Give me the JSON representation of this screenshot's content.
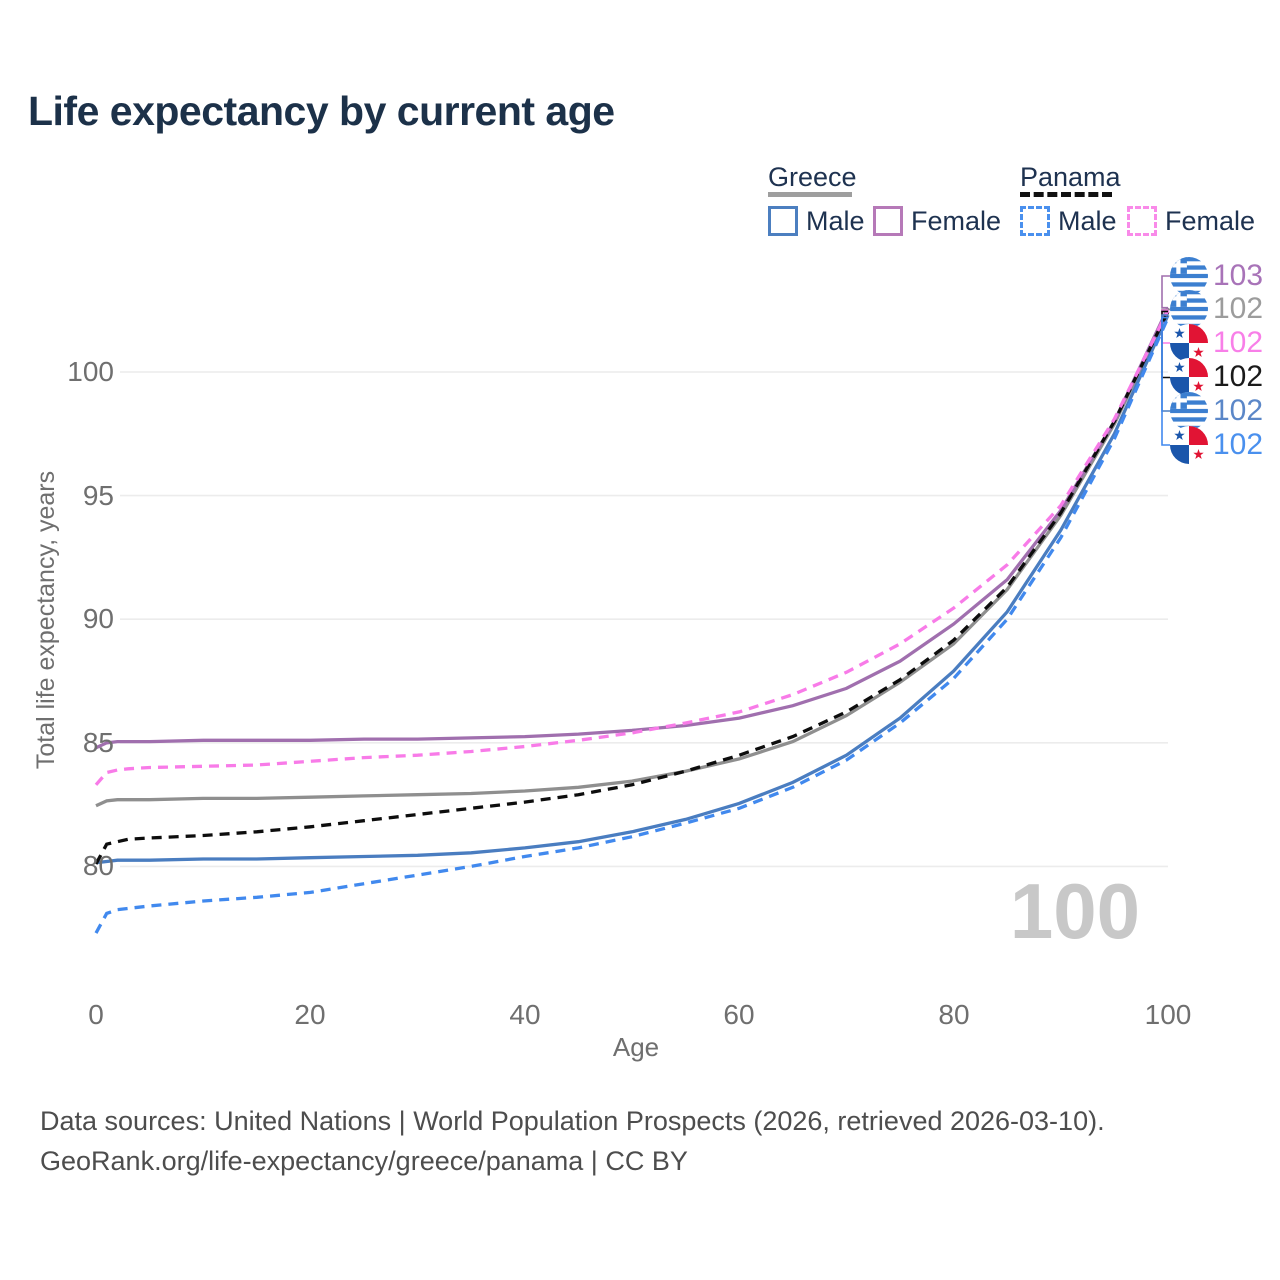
{
  "title": "Life expectancy by current age",
  "watermark": "100",
  "colors": {
    "title_text": "#1c3149",
    "axis_text": "#6f6f6f",
    "gridline": "#ececec",
    "watermark": "#c8c8c8",
    "footer_text": "#4d4d4d"
  },
  "legend": {
    "groups": [
      {
        "label": "Greece",
        "underline_style": "solid",
        "underline_color": "#9e9e9e",
        "items": [
          {
            "label": "Male",
            "swatch_style": "solid",
            "swatch_color": "#4c7fc0"
          },
          {
            "label": "Female",
            "swatch_style": "solid",
            "swatch_color": "#b679b8"
          }
        ]
      },
      {
        "label": "Panama",
        "underline_style": "dashed",
        "underline_color": "#111111",
        "items": [
          {
            "label": "Male",
            "swatch_style": "dashed",
            "swatch_color": "#4a90ee"
          },
          {
            "label": "Female",
            "swatch_style": "dashed",
            "swatch_color": "#f98ae9"
          }
        ]
      }
    ]
  },
  "chart_data": {
    "type": "line",
    "title": "Life expectancy by current age",
    "xlabel": "Age",
    "ylabel": "Total life expectancy, years",
    "x_ticks": [
      "0",
      "20",
      "40",
      "60",
      "80",
      "100"
    ],
    "y_ticks": [
      "100",
      "95",
      "90",
      "85",
      "80"
    ],
    "x_tick_values": [
      0,
      20,
      40,
      60,
      80,
      100
    ],
    "y_gridline_values": [
      100,
      95,
      90,
      85,
      80
    ],
    "x_range": [
      0,
      100
    ],
    "y_range": [
      75.4,
      103.1
    ],
    "grid": "horizontal-only",
    "ages": [
      0,
      1,
      2,
      3,
      5,
      10,
      15,
      20,
      25,
      30,
      35,
      40,
      45,
      50,
      55,
      60,
      65,
      70,
      75,
      80,
      85,
      90,
      95,
      100
    ],
    "series": [
      {
        "name": "Greece Female",
        "country": "Greece",
        "sex": "Female",
        "flag": "greece",
        "style": "solid",
        "color": "#a06fae",
        "label_color": "#a873b8",
        "end_label": "103",
        "values": [
          84.8,
          85.0,
          85.05,
          85.05,
          85.05,
          85.1,
          85.1,
          85.1,
          85.15,
          85.15,
          85.2,
          85.25,
          85.35,
          85.5,
          85.7,
          86.0,
          86.5,
          87.2,
          88.3,
          89.8,
          91.6,
          94.4,
          98.0,
          102.6
        ]
      },
      {
        "name": "Greece Both sexes",
        "country": "Greece",
        "sex": "Both",
        "flag": "greece",
        "style": "solid",
        "color": "#8f8f8f",
        "label_color": "#9c9c9c",
        "end_label": "102",
        "values": [
          82.45,
          82.65,
          82.7,
          82.7,
          82.7,
          82.75,
          82.75,
          82.8,
          82.85,
          82.9,
          82.95,
          83.05,
          83.2,
          83.45,
          83.85,
          84.35,
          85.05,
          86.1,
          87.45,
          89.0,
          91.2,
          94.2,
          97.9,
          102.45
        ]
      },
      {
        "name": "Panama Female",
        "country": "Panama",
        "sex": "Female",
        "flag": "panama",
        "style": "dashed",
        "color": "#f87be8",
        "label_color": "#f87fe8",
        "end_label": "102",
        "values": [
          83.3,
          83.8,
          83.9,
          83.95,
          84.0,
          84.05,
          84.1,
          84.25,
          84.4,
          84.5,
          84.65,
          84.85,
          85.1,
          85.4,
          85.8,
          86.25,
          86.95,
          87.85,
          89.0,
          90.45,
          92.2,
          94.6,
          98.1,
          102.5
        ]
      },
      {
        "name": "Panama Both sexes",
        "country": "Panama",
        "sex": "Both",
        "flag": "panama",
        "style": "dashed",
        "color": "#0d0d0d",
        "label_color": "#1a1a1a",
        "end_label": "102",
        "values": [
          80.1,
          80.9,
          81.0,
          81.1,
          81.15,
          81.25,
          81.4,
          81.6,
          81.85,
          82.1,
          82.35,
          82.6,
          82.9,
          83.3,
          83.85,
          84.5,
          85.25,
          86.25,
          87.55,
          89.15,
          91.3,
          94.3,
          98.0,
          102.45
        ]
      },
      {
        "name": "Greece Male",
        "country": "Greece",
        "sex": "Male",
        "flag": "greece",
        "style": "solid",
        "color": "#4a7dc0",
        "label_color": "#5b87c8",
        "end_label": "102",
        "values": [
          80.15,
          80.2,
          80.25,
          80.25,
          80.25,
          80.3,
          80.3,
          80.35,
          80.4,
          80.45,
          80.55,
          80.75,
          81.0,
          81.4,
          81.9,
          82.55,
          83.4,
          84.5,
          86.0,
          87.9,
          90.3,
          93.6,
          97.5,
          102.3
        ]
      },
      {
        "name": "Panama Male",
        "country": "Panama",
        "sex": "Male",
        "flag": "panama",
        "style": "dashed",
        "color": "#4189ee",
        "label_color": "#4a90ee",
        "end_label": "102",
        "values": [
          77.3,
          78.1,
          78.25,
          78.3,
          78.4,
          78.6,
          78.75,
          78.95,
          79.3,
          79.65,
          80.0,
          80.4,
          80.75,
          81.2,
          81.75,
          82.35,
          83.2,
          84.3,
          85.8,
          87.6,
          90.0,
          93.3,
          97.3,
          102.2
        ]
      }
    ]
  },
  "footer": {
    "line1": "Data sources: United Nations | World Population Prospects (2026, retrieved 2026-03-10).",
    "line2": "GeoRank.org/life-expectancy/greece/panama | CC BY"
  }
}
